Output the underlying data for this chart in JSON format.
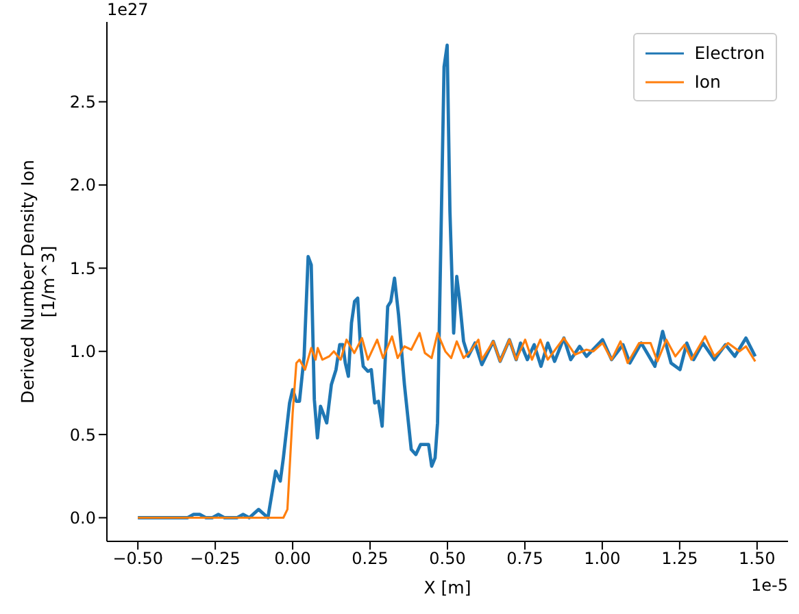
{
  "chart_data": {
    "type": "line",
    "xlabel": "X [m]",
    "ylabel": "Derived Number Density Ion\n[1/m^3]",
    "annotations": [
      "1e27",
      "1e-5"
    ],
    "xlim": [
      -0.6,
      1.6
    ],
    "ylim": [
      -0.142,
      2.98
    ],
    "xticks": [
      {
        "value": -0.5,
        "label": "−0.50"
      },
      {
        "value": -0.25,
        "label": "−0.25"
      },
      {
        "value": 0,
        "label": "0.00"
      },
      {
        "value": 0.25,
        "label": "0.25"
      },
      {
        "value": 0.5,
        "label": "0.50"
      },
      {
        "value": 0.75,
        "label": "0.75"
      },
      {
        "value": 1,
        "label": "1.00"
      },
      {
        "value": 1.25,
        "label": "1.25"
      },
      {
        "value": 1.5,
        "label": "1.50"
      }
    ],
    "yticks": [
      {
        "value": 0,
        "label": "0.0"
      },
      {
        "value": 0.5,
        "label": "0.5"
      },
      {
        "value": 1,
        "label": "1.0"
      },
      {
        "value": 1.5,
        "label": "1.5"
      },
      {
        "value": 2,
        "label": "2.0"
      },
      {
        "value": 2.5,
        "label": "2.5"
      }
    ],
    "grid": false,
    "legend": "top right",
    "marker": "none",
    "line_style": "solid",
    "series": [
      {
        "name": "Electron",
        "color": "#1f77b4",
        "x": [
          -0.5,
          -0.34,
          -0.32,
          -0.3,
          -0.28,
          -0.26,
          -0.24,
          -0.22,
          -0.18,
          -0.16,
          -0.14,
          -0.11,
          -0.08,
          -0.055,
          -0.04,
          -0.03,
          -0.01,
          0,
          0.012,
          0.022,
          0.037,
          0.05,
          0.06,
          0.07,
          0.08,
          0.09,
          0.11,
          0.125,
          0.14,
          0.152,
          0.162,
          0.17,
          0.18,
          0.19,
          0.2,
          0.21,
          0.218,
          0.228,
          0.243,
          0.254,
          0.265,
          0.277,
          0.289,
          0.307,
          0.317,
          0.329,
          0.342,
          0.361,
          0.383,
          0.398,
          0.413,
          0.427,
          0.439,
          0.449,
          0.46,
          0.468,
          0.489,
          0.499,
          0.508,
          0.52,
          0.53,
          0.539,
          0.552,
          0.567,
          0.589,
          0.611,
          0.648,
          0.67,
          0.7,
          0.722,
          0.736,
          0.758,
          0.78,
          0.802,
          0.824,
          0.846,
          0.876,
          0.898,
          0.927,
          0.949,
          1.001,
          1.03,
          1.067,
          1.089,
          1.126,
          1.17,
          1.195,
          1.222,
          1.251,
          1.273,
          1.295,
          1.325,
          1.362,
          1.398,
          1.428,
          1.464,
          1.494
        ],
        "values": [
          0,
          0,
          0.02,
          0.02,
          0,
          0,
          0.02,
          0,
          0,
          0.02,
          0,
          0.05,
          0,
          0.28,
          0.22,
          0.36,
          0.69,
          0.77,
          0.7,
          0.7,
          0.97,
          1.57,
          1.52,
          0.71,
          0.48,
          0.67,
          0.57,
          0.8,
          0.89,
          1.04,
          1.04,
          0.93,
          0.85,
          1.17,
          1.3,
          1.32,
          1.06,
          0.91,
          0.88,
          0.89,
          0.69,
          0.7,
          0.55,
          1.27,
          1.3,
          1.44,
          1.22,
          0.8,
          0.41,
          0.38,
          0.44,
          0.44,
          0.44,
          0.31,
          0.36,
          0.57,
          2.71,
          2.84,
          1.84,
          1.11,
          1.45,
          1.31,
          1.06,
          0.97,
          1.05,
          0.92,
          1.06,
          0.94,
          1.07,
          0.95,
          1.05,
          0.95,
          1.04,
          0.91,
          1.05,
          0.94,
          1.08,
          0.95,
          1.03,
          0.97,
          1.07,
          0.95,
          1.04,
          0.93,
          1.05,
          0.91,
          1.12,
          0.93,
          0.89,
          1.05,
          0.95,
          1.05,
          0.95,
          1.04,
          0.97,
          1.08,
          0.97
        ]
      },
      {
        "name": "Ion",
        "color": "#ff7f0e",
        "x": [
          -0.5,
          -0.03,
          -0.017,
          0,
          0.012,
          0.022,
          0.04,
          0.06,
          0.074,
          0.081,
          0.096,
          0.118,
          0.133,
          0.155,
          0.174,
          0.199,
          0.224,
          0.243,
          0.273,
          0.292,
          0.321,
          0.339,
          0.361,
          0.383,
          0.41,
          0.427,
          0.449,
          0.468,
          0.493,
          0.512,
          0.53,
          0.552,
          0.574,
          0.6,
          0.611,
          0.648,
          0.67,
          0.7,
          0.722,
          0.751,
          0.773,
          0.8,
          0.824,
          0.876,
          0.912,
          0.949,
          0.971,
          1.001,
          1.03,
          1.059,
          1.082,
          1.119,
          1.156,
          1.178,
          1.207,
          1.236,
          1.266,
          1.288,
          1.332,
          1.362,
          1.406,
          1.443,
          1.464,
          1.494
        ],
        "values": [
          0,
          0,
          0.05,
          0.63,
          0.93,
          0.95,
          0.89,
          1.02,
          0.95,
          1.02,
          0.95,
          0.97,
          1,
          0.95,
          1.07,
          0.99,
          1.08,
          0.95,
          1.07,
          0.96,
          1.09,
          0.96,
          1.03,
          1.01,
          1.11,
          0.99,
          0.96,
          1.11,
          1,
          0.96,
          1.06,
          0.96,
          1,
          1.07,
          0.95,
          1.06,
          0.94,
          1.07,
          0.95,
          1.07,
          0.95,
          1.07,
          0.95,
          1.08,
          0.98,
          1.01,
          1,
          1.05,
          0.95,
          1.06,
          0.93,
          1.05,
          1.05,
          0.94,
          1.07,
          0.97,
          1.04,
          0.95,
          1.09,
          0.97,
          1.05,
          1,
          1.03,
          0.94
        ]
      }
    ]
  }
}
